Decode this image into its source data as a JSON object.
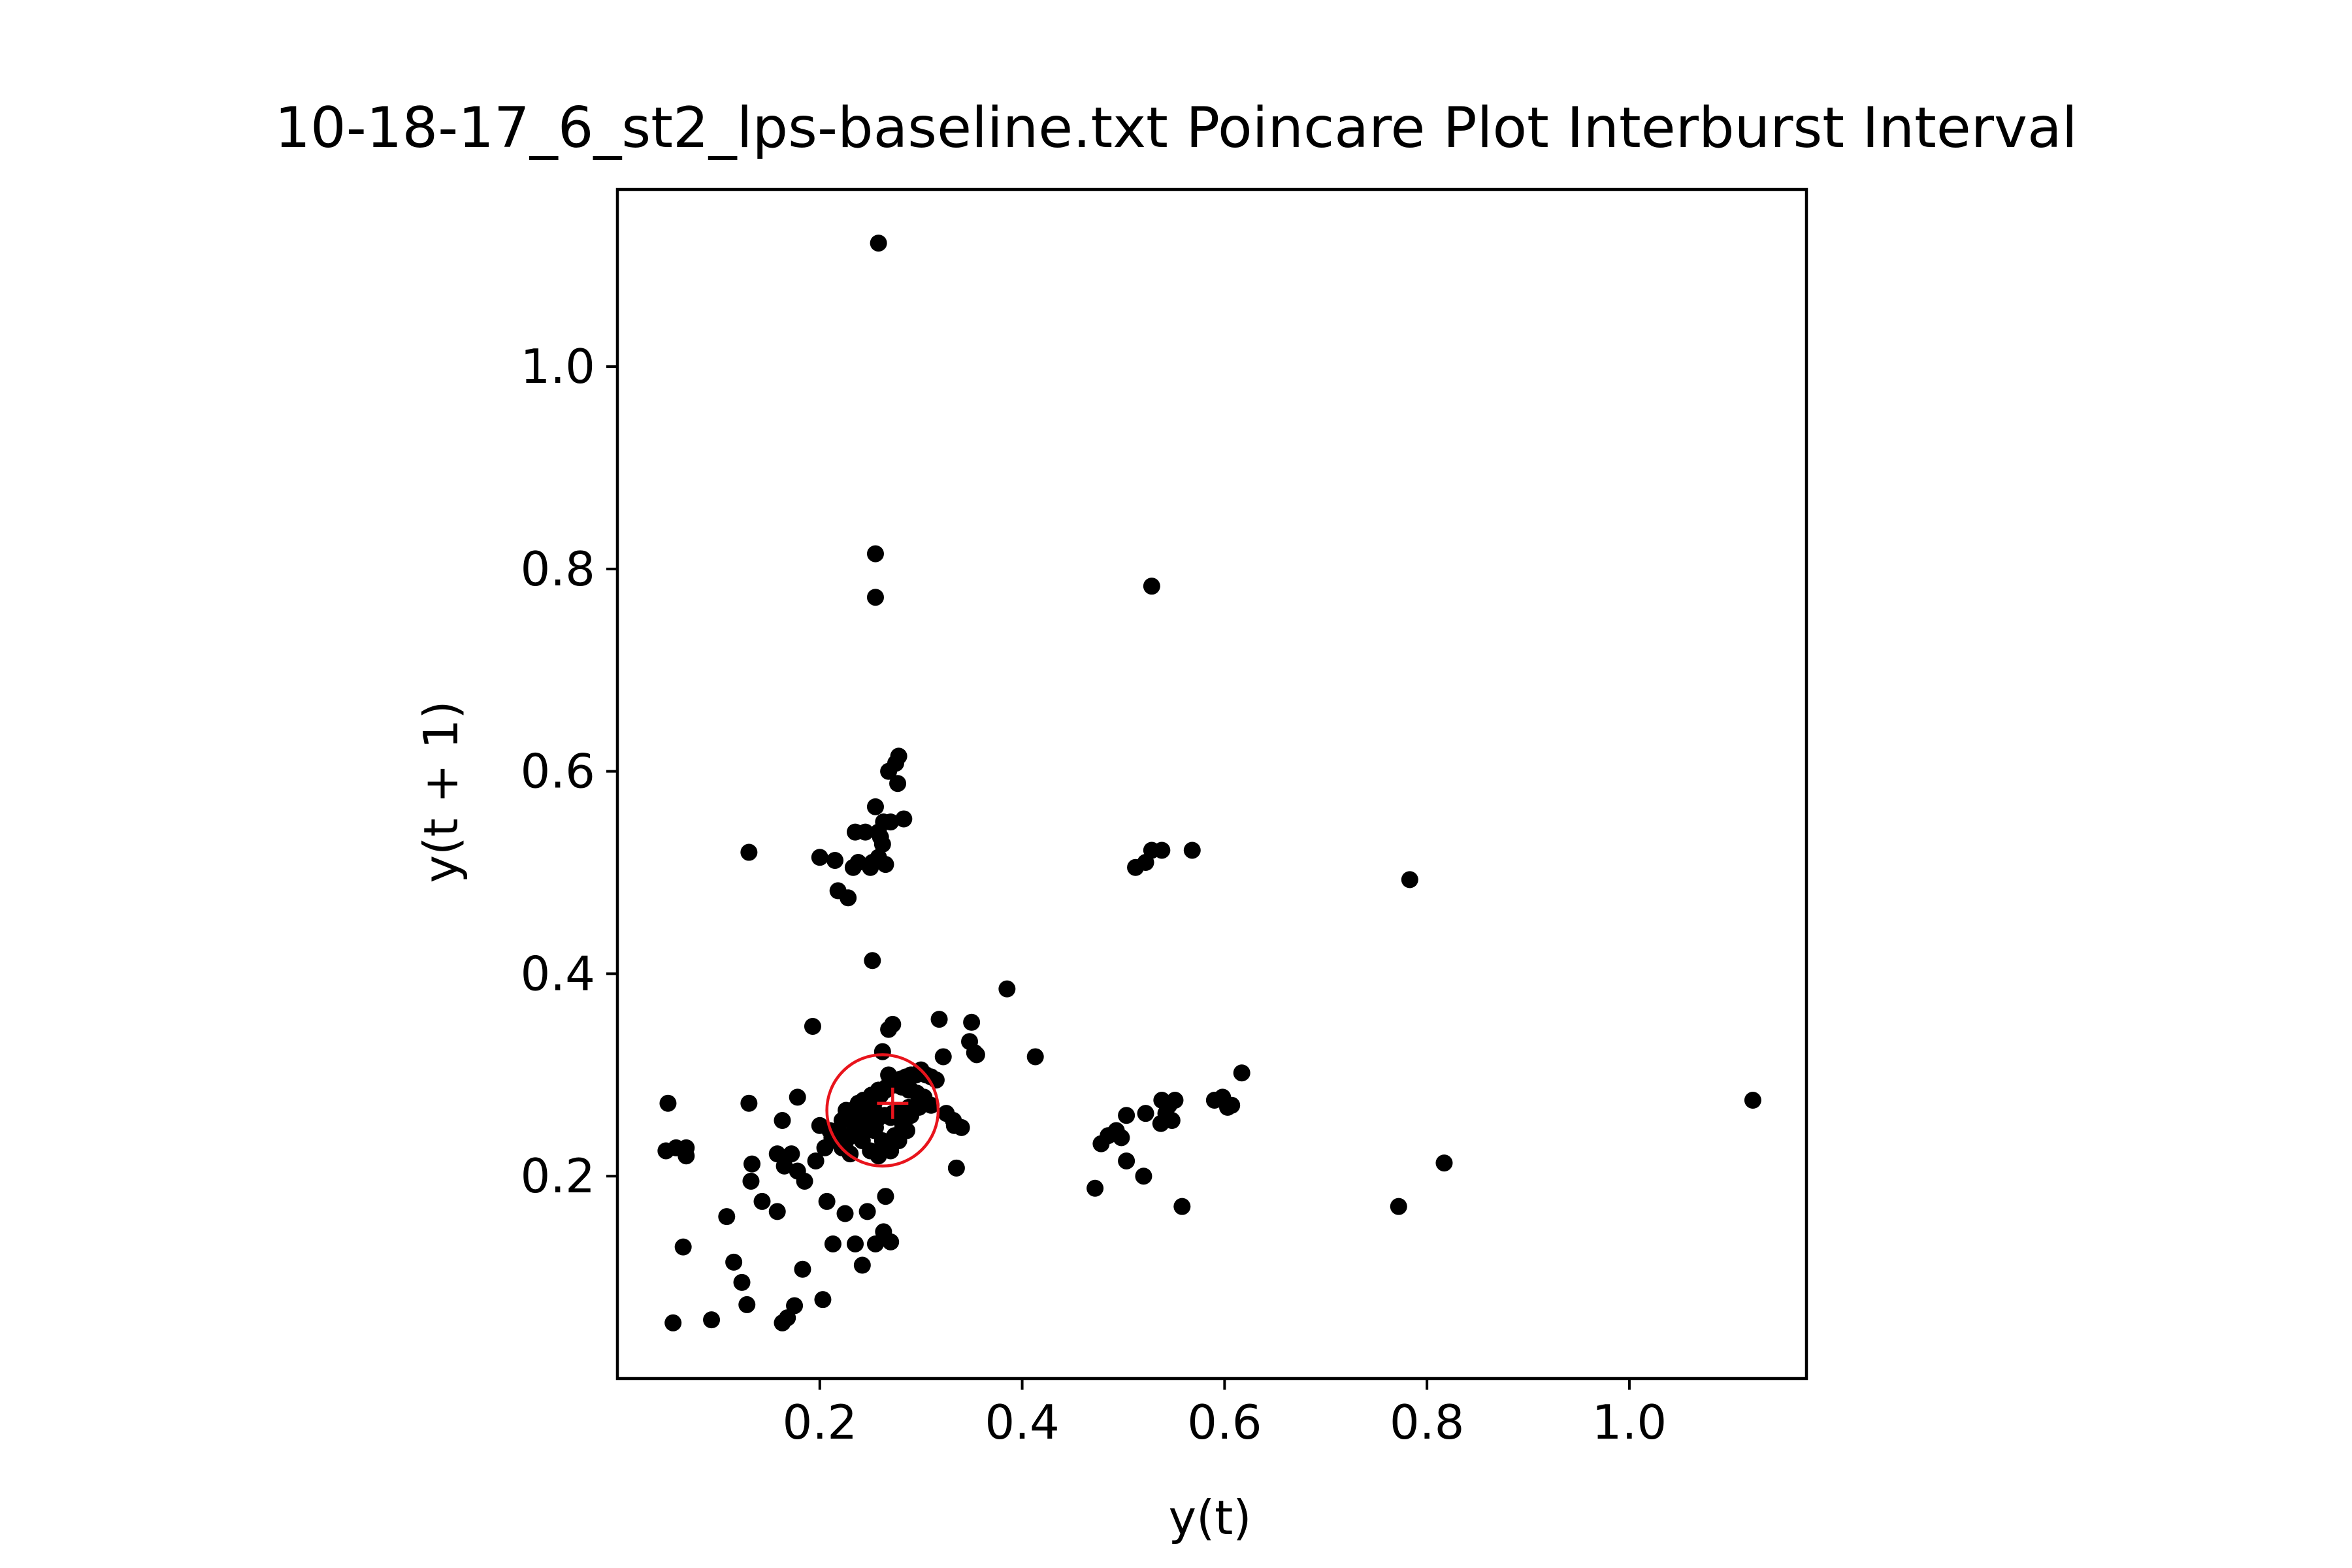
{
  "chart_data": {
    "type": "scatter",
    "title": "10-18-17_6_st2_lps-baseline.txt Poincare Plot Interburst Interval",
    "xlabel": "y(t)",
    "ylabel": "y(t + 1)",
    "xlim": [
      0.0,
      1.175
    ],
    "ylim": [
      0.0,
      1.175
    ],
    "xticks": [
      0.2,
      0.4,
      0.6,
      0.8,
      1.0
    ],
    "xtick_labels": [
      "0.2",
      "0.4",
      "0.6",
      "0.8",
      "1.0"
    ],
    "yticks": [
      0.2,
      0.4,
      0.6,
      0.8,
      1.0
    ],
    "ytick_labels": [
      "0.2",
      "0.4",
      "0.6",
      "0.8",
      "1.0"
    ],
    "grid": false,
    "legend": "none",
    "colors": {
      "points": "#000000",
      "ellipse": "#e8141c",
      "centroid": "#e8141c",
      "axes": "#000000"
    },
    "series": [
      {
        "marker": "circle",
        "x": [
          0.258,
          0.255,
          0.255,
          0.528,
          0.783,
          1.122,
          0.817,
          0.772,
          0.558,
          0.617,
          0.603,
          0.607,
          0.598,
          0.59,
          0.568,
          0.538,
          0.528,
          0.522,
          0.512,
          0.52,
          0.503,
          0.498,
          0.493,
          0.485,
          0.478,
          0.472,
          0.503,
          0.522,
          0.538,
          0.545,
          0.551,
          0.542,
          0.537,
          0.548,
          0.278,
          0.275,
          0.277,
          0.268,
          0.283,
          0.27,
          0.263,
          0.258,
          0.262,
          0.255,
          0.245,
          0.252,
          0.235,
          0.25,
          0.258,
          0.265,
          0.26,
          0.228,
          0.2,
          0.215,
          0.218,
          0.233,
          0.238,
          0.252,
          0.13,
          0.05,
          0.058,
          0.068,
          0.068,
          0.048,
          0.055,
          0.065,
          0.093,
          0.108,
          0.115,
          0.123,
          0.128,
          0.13,
          0.132,
          0.133,
          0.143,
          0.158,
          0.163,
          0.168,
          0.175,
          0.178,
          0.183,
          0.163,
          0.158,
          0.193,
          0.203,
          0.207,
          0.213,
          0.225,
          0.235,
          0.242,
          0.247,
          0.255,
          0.263,
          0.27,
          0.262,
          0.268,
          0.272,
          0.35,
          0.318,
          0.348,
          0.355,
          0.385,
          0.413,
          0.353,
          0.322,
          0.333,
          0.335,
          0.253,
          0.265,
          0.27,
          0.255,
          0.178,
          0.185,
          0.165,
          0.172,
          0.196,
          0.205,
          0.212,
          0.218,
          0.225,
          0.23,
          0.235,
          0.24,
          0.245,
          0.25,
          0.255,
          0.26,
          0.265,
          0.27,
          0.275,
          0.28,
          0.285,
          0.29,
          0.295,
          0.3,
          0.305,
          0.31,
          0.315,
          0.222,
          0.228,
          0.236,
          0.243,
          0.251,
          0.258,
          0.266,
          0.273,
          0.281,
          0.288,
          0.296,
          0.303,
          0.232,
          0.24,
          0.248,
          0.256,
          0.264,
          0.272,
          0.28,
          0.288,
          0.296,
          0.226,
          0.234,
          0.242,
          0.25,
          0.258,
          0.266,
          0.274,
          0.282,
          0.29,
          0.298,
          0.238,
          0.246,
          0.254,
          0.262,
          0.27,
          0.278,
          0.286,
          0.2,
          0.21,
          0.216,
          0.222,
          0.23,
          0.332,
          0.34,
          0.325,
          0.31,
          0.3,
          0.29,
          0.283,
          0.275,
          0.268
        ],
        "y": [
          1.122,
          0.815,
          0.772,
          0.783,
          0.493,
          0.275,
          0.213,
          0.17,
          0.17,
          0.302,
          0.268,
          0.27,
          0.278,
          0.275,
          0.522,
          0.522,
          0.522,
          0.51,
          0.505,
          0.2,
          0.215,
          0.238,
          0.245,
          0.24,
          0.232,
          0.188,
          0.26,
          0.262,
          0.275,
          0.27,
          0.275,
          0.262,
          0.252,
          0.255,
          0.615,
          0.608,
          0.588,
          0.6,
          0.553,
          0.55,
          0.55,
          0.54,
          0.528,
          0.565,
          0.54,
          0.51,
          0.54,
          0.505,
          0.515,
          0.508,
          0.535,
          0.475,
          0.515,
          0.512,
          0.482,
          0.505,
          0.51,
          0.413,
          0.52,
          0.272,
          0.228,
          0.22,
          0.228,
          0.225,
          0.055,
          0.13,
          0.058,
          0.16,
          0.115,
          0.095,
          0.073,
          0.272,
          0.195,
          0.212,
          0.175,
          0.165,
          0.055,
          0.06,
          0.072,
          0.278,
          0.108,
          0.255,
          0.222,
          0.348,
          0.078,
          0.175,
          0.133,
          0.163,
          0.133,
          0.112,
          0.165,
          0.133,
          0.145,
          0.135,
          0.323,
          0.345,
          0.35,
          0.352,
          0.355,
          0.333,
          0.32,
          0.385,
          0.318,
          0.322,
          0.318,
          0.25,
          0.208,
          0.268,
          0.18,
          0.258,
          0.248,
          0.205,
          0.195,
          0.21,
          0.222,
          0.215,
          0.228,
          0.238,
          0.245,
          0.232,
          0.24,
          0.248,
          0.256,
          0.262,
          0.27,
          0.275,
          0.28,
          0.285,
          0.29,
          0.293,
          0.296,
          0.298,
          0.3,
          0.3,
          0.305,
          0.3,
          0.298,
          0.295,
          0.255,
          0.262,
          0.268,
          0.275,
          0.28,
          0.285,
          0.288,
          0.29,
          0.288,
          0.285,
          0.282,
          0.278,
          0.24,
          0.245,
          0.25,
          0.255,
          0.26,
          0.262,
          0.265,
          0.268,
          0.27,
          0.265,
          0.25,
          0.235,
          0.225,
          0.22,
          0.23,
          0.24,
          0.25,
          0.26,
          0.268,
          0.272,
          0.258,
          0.245,
          0.235,
          0.225,
          0.235,
          0.245,
          0.25,
          0.245,
          0.235,
          0.228,
          0.222,
          0.255,
          0.248,
          0.262,
          0.27,
          0.278,
          0.285,
          0.29,
          0.295,
          0.3
        ]
      }
    ],
    "centroid": {
      "x": 0.272,
      "y": 0.272
    },
    "ellipse": {
      "cx": 0.262,
      "cy": 0.265,
      "rx": 0.055,
      "ry": 0.055
    }
  }
}
